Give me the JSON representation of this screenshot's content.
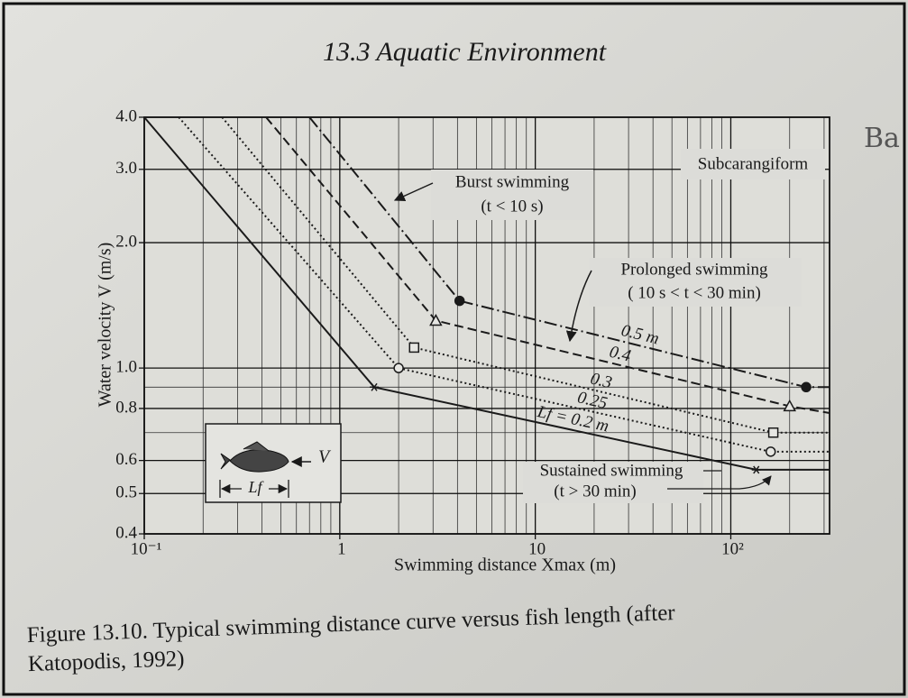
{
  "page": {
    "header": "13.3 Aquatic Environment",
    "caption": [
      "Figure 13.10. Typical swimming distance curve versus fish length (after",
      "Katopodis, 1992)"
    ],
    "margin_note": "Ba"
  },
  "chart_data": {
    "type": "line",
    "xlabel": "Swimming distance Xmax (m)",
    "ylabel": "Water velocity V (m/s)",
    "log_x": true,
    "log_y": true,
    "grid": true,
    "xlim": [
      0.1,
      320
    ],
    "ylim": [
      0.4,
      4
    ],
    "xticks": [
      {
        "value": 0.1,
        "label": "10⁻¹"
      },
      1,
      10,
      {
        "value": 100,
        "label": "10²"
      }
    ],
    "yticks": [
      0.4,
      0.5,
      0.6,
      0.8,
      {
        "value": 1,
        "label": "1.0"
      },
      {
        "value": 2,
        "label": "2.0"
      },
      {
        "value": 3,
        "label": "3.0"
      },
      {
        "value": 4,
        "label": "4.0"
      }
    ],
    "series": [
      {
        "name": "Lf = 0.2 m",
        "color": "#1a1a1a",
        "dash": "solid",
        "marker": "asterisk",
        "x": [
          0.1,
          1.5,
          135,
          320
        ],
        "values": [
          4,
          0.9,
          0.57,
          0.57
        ]
      },
      {
        "name": "0.25",
        "color": "#1a1a1a",
        "dash": "dotted",
        "marker": "circle-open",
        "x": [
          0.15,
          2,
          160,
          320
        ],
        "values": [
          4,
          1,
          0.63,
          0.63
        ]
      },
      {
        "name": "0.3",
        "color": "#1a1a1a",
        "dash": "dotted",
        "marker": "square-open",
        "x": [
          0.25,
          2.4,
          165,
          320
        ],
        "values": [
          4,
          1.12,
          0.7,
          0.7
        ]
      },
      {
        "name": "0.4",
        "color": "#1a1a1a",
        "dash": "dashed",
        "marker": "triangle-open",
        "x": [
          0.42,
          3.1,
          200,
          320
        ],
        "values": [
          4,
          1.3,
          0.81,
          0.78
        ]
      },
      {
        "name": "0.5 m",
        "color": "#1a1a1a",
        "dash": "dashdot",
        "marker": "circle-filled",
        "x": [
          0.7,
          4.1,
          243,
          320
        ],
        "values": [
          4,
          1.45,
          0.9,
          0.9
        ]
      }
    ],
    "annotations": [
      "Subcarangiform",
      "Burst swimming",
      "(t < 10 s)",
      "Prolonged swimming",
      "( 10 s < t < 30 min)",
      "Sustained swimming",
      "(t > 30 min)"
    ],
    "inset": {
      "velocity": "V",
      "length": "Lf"
    }
  }
}
